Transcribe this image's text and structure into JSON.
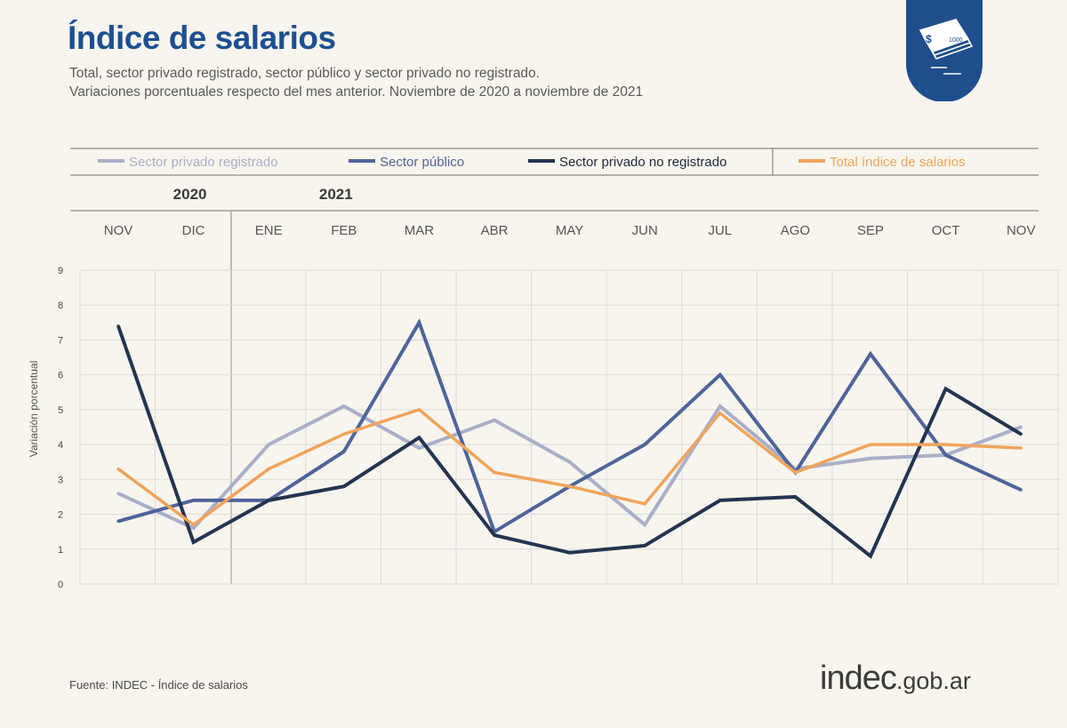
{
  "header": {
    "title": "Índice de salarios",
    "subtitle_line1": "Total, sector privado registrado, sector público y sector privado no registrado.",
    "subtitle_line2": "Variaciones porcentuales respecto del mes anterior. Noviembre de 2020 a noviembre de 2021"
  },
  "badge": {
    "icon": "money-stack-icon",
    "banknote_text": "1000",
    "color": "#1f4e8c"
  },
  "footer": {
    "source": "Fuente: INDEC - Índice de salarios",
    "logo_main": "indec",
    "logo_tld": ".gob.ar"
  },
  "chart_data": {
    "type": "line",
    "title": "Índice de salarios",
    "ylabel": "Variación porcentual",
    "xlabel": "",
    "ylim": [
      0,
      9
    ],
    "yticks": [
      0,
      1,
      2,
      3,
      4,
      5,
      6,
      7,
      8,
      9
    ],
    "grid": true,
    "legend_position": "top",
    "years": [
      {
        "label": "2020",
        "category_index": 1
      },
      {
        "label": "2021",
        "category_index": 3
      }
    ],
    "year_divider_after_index": 1,
    "categories": [
      "NOV",
      "DIC",
      "ENE",
      "FEB",
      "MAR",
      "ABR",
      "MAY",
      "JUN",
      "JUL",
      "AGO",
      "SEP",
      "OCT",
      "NOV"
    ],
    "series": [
      {
        "name": "Sector privado registrado",
        "color": "#a9afc8",
        "values": [
          2.6,
          1.6,
          4.0,
          5.1,
          3.9,
          4.7,
          3.5,
          1.7,
          5.1,
          3.3,
          3.6,
          3.7,
          4.5
        ]
      },
      {
        "name": "Sector público",
        "color": "#4f6499",
        "values": [
          1.8,
          2.4,
          2.4,
          3.8,
          7.5,
          1.5,
          2.8,
          4.0,
          6.0,
          3.2,
          6.6,
          3.7,
          2.7
        ]
      },
      {
        "name": "Sector privado no registrado",
        "color": "#243450",
        "values": [
          7.4,
          1.2,
          2.4,
          2.8,
          4.2,
          1.4,
          0.9,
          1.1,
          2.4,
          2.5,
          0.8,
          5.6,
          4.3
        ]
      },
      {
        "name": "Total índice de salarios",
        "color": "#f0a45c",
        "values": [
          3.3,
          1.7,
          3.3,
          4.3,
          5.0,
          3.2,
          2.8,
          2.3,
          4.9,
          3.2,
          4.0,
          4.0,
          3.9
        ]
      }
    ]
  }
}
